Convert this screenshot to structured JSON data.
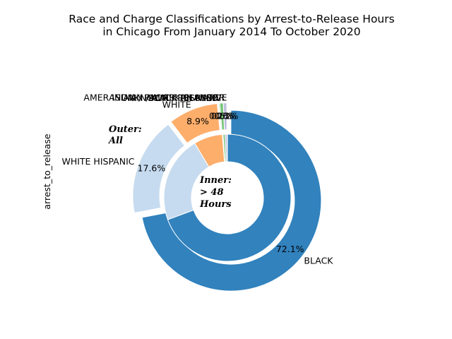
{
  "chart_data": {
    "type": "pie",
    "style": "nested-donut",
    "title": "Race and Charge Classifications by Arrest-to-Release Hours",
    "subtitle": "in Chicago From January 2014 To October 2020",
    "ylabel": "arrest_to_release",
    "outer_note_line1": "Outer:",
    "outer_note_line2": "All",
    "inner_note_line1": "Inner:",
    "inner_note_line2": "> 48",
    "inner_note_line3": "Hours",
    "start_angle_deg": 90,
    "direction": "counterclockwise",
    "categories": [
      "AMER INDIAN / ALASKAN NATIVE",
      "ASIAN / PACIFIC ISLANDER",
      "BLACK HISPANIC",
      "UNKNOWN / REFUSED",
      "WHITE",
      "WHITE HISPANIC",
      "BLACK"
    ],
    "colors": [
      "#9e9ac8",
      "#bcbddc",
      "#74c476",
      "#a1d99b",
      "#fdae6b",
      "#c6dbef",
      "#3182bd"
    ],
    "outer_ring": {
      "name": "All",
      "values": [
        0.1,
        0.6,
        0.6,
        0.2,
        8.9,
        17.6,
        72.1
      ],
      "percent_labels": [
        "0.1%",
        "0.6%",
        "0.6%",
        "0.2%",
        "8.9%",
        "17.6%",
        "72.1%"
      ],
      "explode": [
        0.05,
        0.05,
        0.05,
        0.05,
        0.05,
        0.05,
        0.05
      ]
    },
    "inner_ring": {
      "name": "> 48 Hours",
      "values": [
        0.1,
        0.5,
        0.5,
        0.2,
        7.3,
        22.0,
        69.4
      ]
    }
  }
}
